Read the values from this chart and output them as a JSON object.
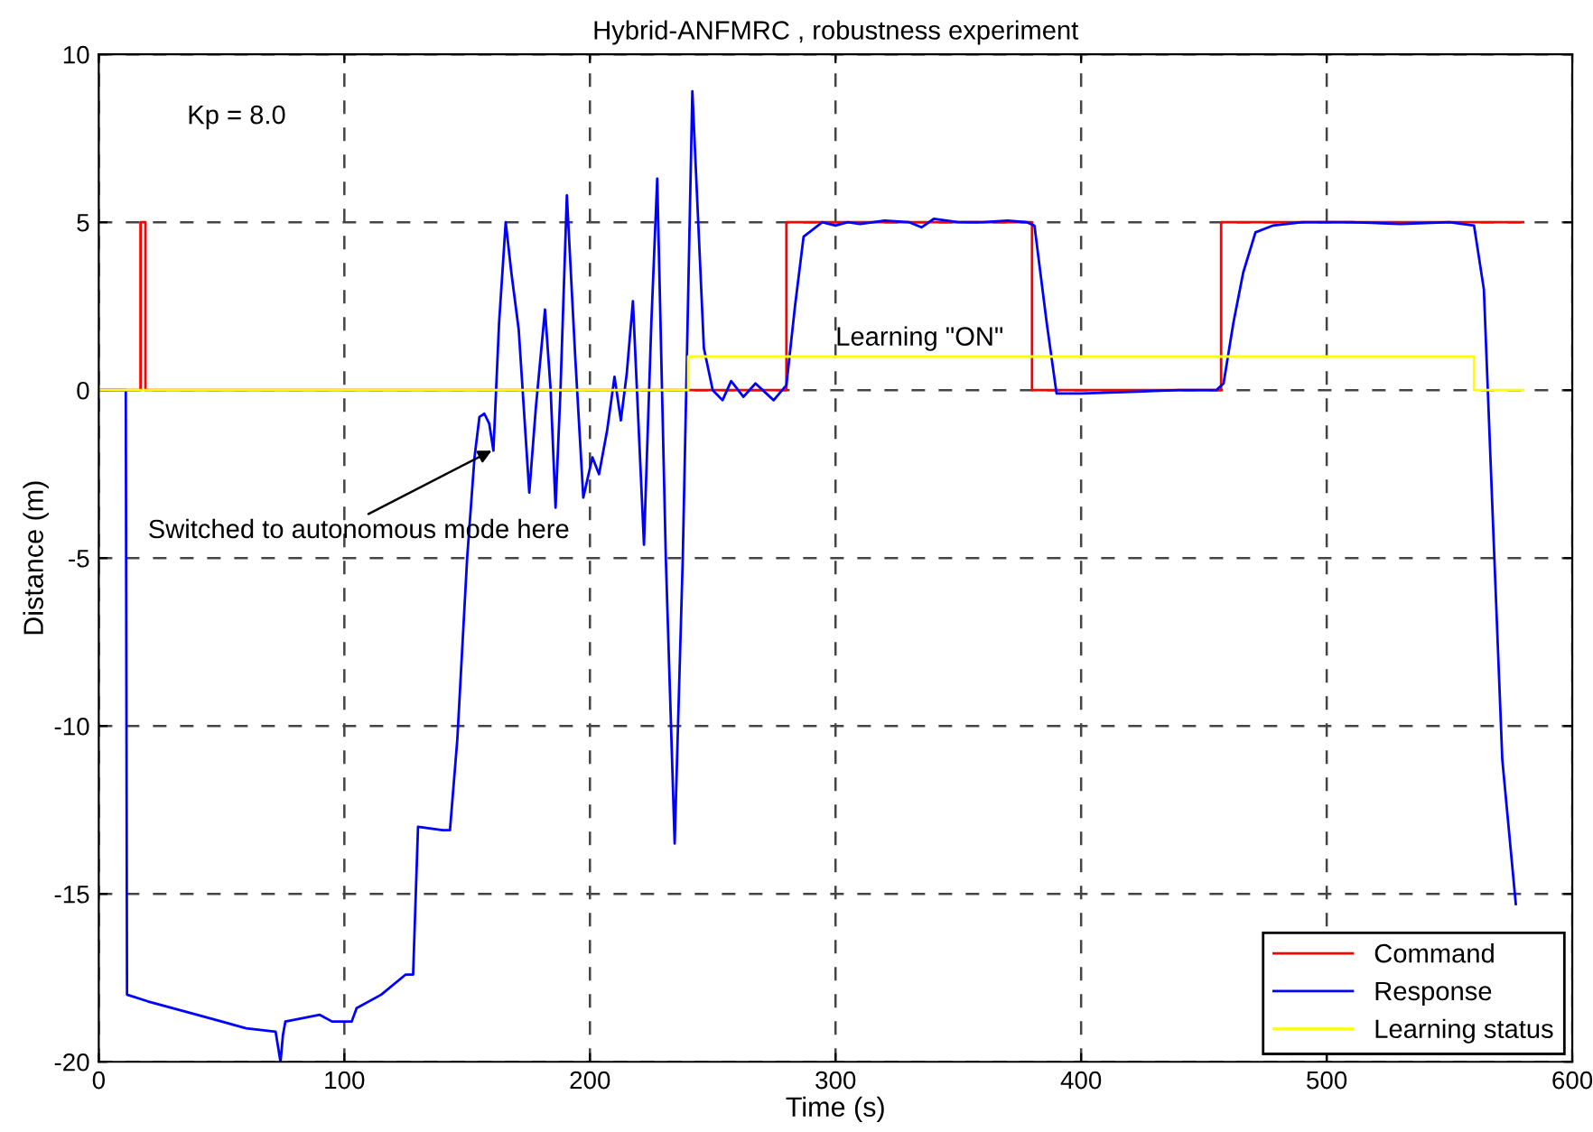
{
  "chart_data": {
    "type": "line",
    "title": "Hybrid-ANFMRC , robustness experiment",
    "xlabel": "Time (s)",
    "ylabel": "Distance (m)",
    "xlim": [
      0,
      600
    ],
    "ylim": [
      -20,
      10
    ],
    "xticks": [
      0,
      100,
      200,
      300,
      400,
      500,
      600
    ],
    "yticks": [
      -20,
      -15,
      -10,
      -5,
      0,
      5,
      10
    ],
    "grid": true,
    "legend": "bottom right",
    "marker": "none",
    "line_style": "solid",
    "annotations": [
      "Kp = 8.0",
      {
        "text": "Switched to autonomous mode here",
        "x": 160,
        "y": -1.8
      },
      "Learning \"ON\""
    ],
    "series": [
      {
        "name": "Command",
        "color": "#ff0000",
        "x": [
          0,
          17,
          17,
          19,
          19,
          280,
          280,
          380,
          380,
          457,
          457,
          580
        ],
        "values": [
          0,
          0,
          5,
          5,
          0,
          0,
          5,
          5,
          0,
          0,
          5,
          5
        ]
      },
      {
        "name": "Response",
        "color": "#0000ff",
        "x": [
          0,
          11,
          11.5,
          20,
          40,
          60,
          72,
          74,
          75,
          76,
          90,
          95,
          103,
          105,
          115,
          125,
          128,
          130,
          140,
          143,
          146,
          150,
          153,
          155,
          157,
          159,
          160.7,
          163,
          165.7,
          168,
          171,
          175.3,
          178,
          181.7,
          184,
          186,
          188,
          190.6,
          194,
          197.3,
          201,
          203.7,
          207,
          210,
          212.6,
          215,
          217.5,
          222,
          225,
          227.4,
          230.9,
          234.5,
          237.8,
          241.7,
          246.4,
          250,
          254,
          257.5,
          262.5,
          267.4,
          274.8,
          280,
          283.5,
          287,
          294.6,
          300,
          305,
          310,
          320,
          330,
          335,
          340,
          350,
          360,
          370,
          378,
          381,
          386,
          390,
          400,
          420,
          440,
          455,
          458,
          462,
          466,
          471,
          478,
          490,
          510,
          530,
          550,
          560,
          564,
          568,
          571.5,
          577
        ],
        "values": [
          0,
          0,
          -18,
          -18.2,
          -18.6,
          -19,
          -19.1,
          -20,
          -19.2,
          -18.8,
          -18.6,
          -18.8,
          -18.8,
          -18.4,
          -18,
          -17.4,
          -17.4,
          -13,
          -13.1,
          -13.1,
          -10.4,
          -5,
          -2,
          -0.8,
          -0.7,
          -1.0,
          -1.8,
          2.0,
          5.0,
          3.5,
          1.8,
          -3.05,
          -0.5,
          2.4,
          0,
          -3.5,
          0,
          5.8,
          1,
          -3.2,
          -2.0,
          -2.5,
          -1.2,
          0.4,
          -0.9,
          0.5,
          2.65,
          -4.6,
          2,
          6.3,
          -5,
          -13.5,
          -5,
          8.9,
          1.25,
          0,
          -0.3,
          0.27,
          -0.2,
          0.2,
          -0.3,
          0.15,
          2.5,
          4.57,
          5.0,
          4.9,
          5.0,
          4.95,
          5.05,
          5.0,
          4.85,
          5.1,
          5.0,
          5.0,
          5.05,
          5.0,
          4.9,
          2.0,
          -0.1,
          -0.1,
          -0.05,
          0,
          0,
          0.2,
          2.0,
          3.5,
          4.7,
          4.9,
          5.0,
          5.0,
          4.95,
          5.0,
          4.9,
          3.0,
          -4.5,
          -11,
          -15.3
        ]
      },
      {
        "name": "Learning status",
        "color": "#ffff00",
        "x": [
          0,
          240,
          240,
          560,
          560,
          580
        ],
        "values": [
          0,
          0,
          1,
          1,
          0,
          0
        ]
      }
    ]
  }
}
